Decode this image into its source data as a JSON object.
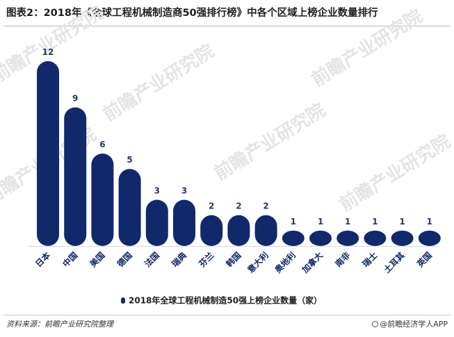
{
  "title": "图表2：2018年《全球工程机械制造商50强排行榜》中各个区域上榜企业数量排行",
  "source": "资料来源：前瞻产业研究院整理",
  "brand": "@前瞻经济学人APP",
  "watermark": "前瞻产业研究院",
  "colors": {
    "bar": "#11296b",
    "label": "#1f3a6b",
    "tick": "#11296b"
  },
  "chart_data": {
    "type": "bar",
    "categories": [
      "日本",
      "中国",
      "美国",
      "德国",
      "法国",
      "瑞典",
      "芬兰",
      "韩国",
      "意大利",
      "奥地利",
      "加拿大",
      "南非",
      "瑞士",
      "土耳其",
      "英国"
    ],
    "series": [
      {
        "name": "2018年全球工程机械制造50强上榜企业数量（家）",
        "values": [
          12,
          9,
          6,
          5,
          3,
          3,
          2,
          2,
          2,
          1,
          1,
          1,
          1,
          1,
          1
        ]
      }
    ],
    "title": "",
    "xlabel": "",
    "ylabel": "",
    "ylim": [
      0,
      12
    ],
    "grid": false,
    "legend": "bottom-center"
  }
}
